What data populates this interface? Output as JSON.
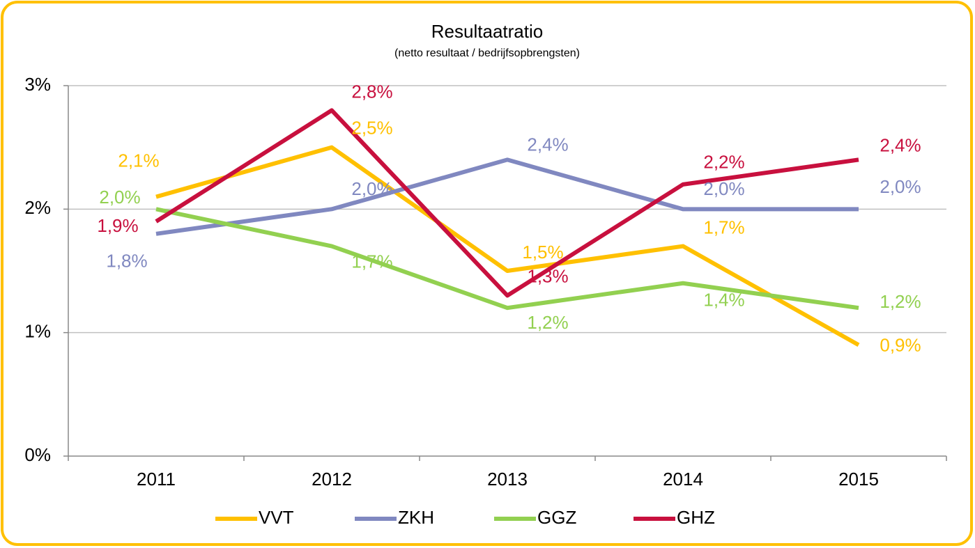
{
  "chart_data": {
    "type": "line",
    "title": "Resultaatratio",
    "subtitle": "(netto resultaat / bedrijfsopbrengsten)",
    "categories": [
      "2011",
      "2012",
      "2013",
      "2014",
      "2015"
    ],
    "ylim": [
      0,
      3
    ],
    "yticks": [
      {
        "value": 0,
        "label": "0%"
      },
      {
        "value": 1,
        "label": "1%"
      },
      {
        "value": 2,
        "label": "2%"
      },
      {
        "value": 3,
        "label": "3%"
      }
    ],
    "grid": true,
    "legend": "bottom",
    "series": [
      {
        "name": "VVT",
        "color": "#ffc000",
        "values": [
          2.1,
          2.5,
          1.5,
          1.7,
          0.9
        ],
        "value_labels": [
          "2,1%",
          "2,5%",
          "1,5%",
          "1,7%",
          "0,9%"
        ]
      },
      {
        "name": "ZKH",
        "color": "#8088c0",
        "values": [
          1.8,
          2.0,
          2.4,
          2.0,
          2.0
        ],
        "value_labels": [
          "1,8%",
          "2,0%",
          "2,4%",
          "2,0%",
          "2,0%"
        ]
      },
      {
        "name": "GGZ",
        "color": "#92d050",
        "values": [
          2.0,
          1.7,
          1.2,
          1.4,
          1.2
        ],
        "value_labels": [
          "2,0%",
          "1,7%",
          "1,2%",
          "1,4%",
          "1,2%"
        ]
      },
      {
        "name": "GHZ",
        "color": "#c8103e",
        "values": [
          1.9,
          2.8,
          1.3,
          2.2,
          2.4
        ],
        "value_labels": [
          "1,9%",
          "2,8%",
          "1,3%",
          "2,2%",
          "2,4%"
        ]
      }
    ]
  }
}
